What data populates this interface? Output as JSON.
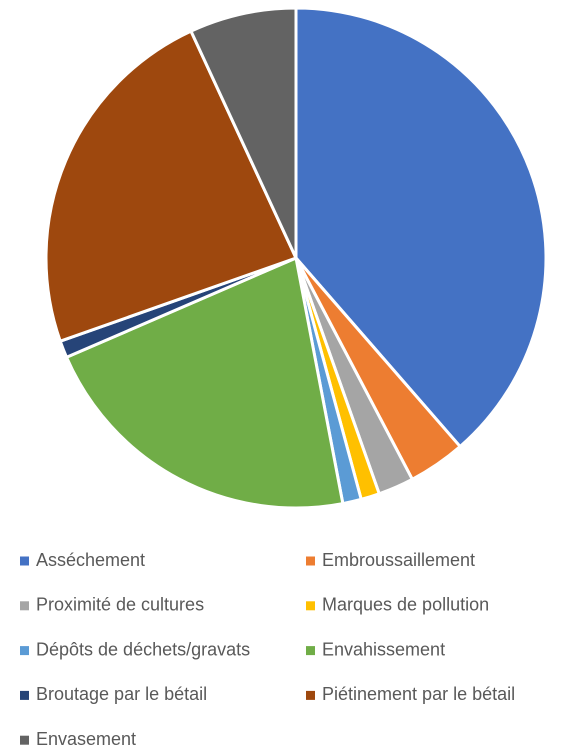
{
  "chart_data": {
    "type": "pie",
    "categories": [
      "Asséchement",
      "Embroussaillement",
      "Proximité de cultures",
      "Marques de pollution",
      "Dépôts de déchets/gravats",
      "Envahissement",
      "Broutage par le bétail",
      "Piétinement par le bétail",
      "Envasement"
    ],
    "values": [
      38.6,
      3.7,
      2.3,
      1.2,
      1.2,
      21.5,
      1.1,
      23.5,
      6.9
    ],
    "colors": [
      "#4472c4",
      "#ed7d31",
      "#a5a5a5",
      "#ffc000",
      "#5b9bd5",
      "#70ad47",
      "#264478",
      "#9e480e",
      "#636363"
    ],
    "legend": "bottom"
  }
}
